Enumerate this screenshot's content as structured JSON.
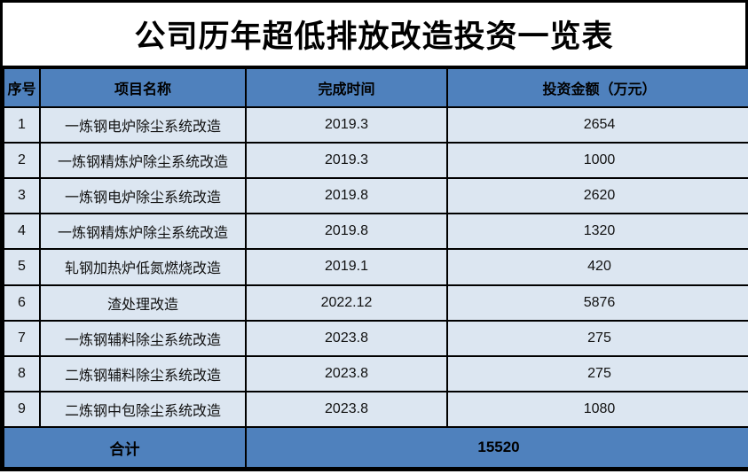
{
  "title": "公司历年超低排放改造投资一览表",
  "table": {
    "columns": [
      "序号",
      "项目名称",
      "完成时间",
      "投资金额（万元）"
    ],
    "rows": [
      {
        "no": "1",
        "project": "一炼钢电炉除尘系统改造",
        "date": "2019.3",
        "amount": "2654"
      },
      {
        "no": "2",
        "project": "一炼钢精炼炉除尘系统改造",
        "date": "2019.3",
        "amount": "1000"
      },
      {
        "no": "3",
        "project": "一炼钢电炉除尘系统改造",
        "date": "2019.8",
        "amount": "2620"
      },
      {
        "no": "4",
        "project": "一炼钢精炼炉除尘系统改造",
        "date": "2019.8",
        "amount": "1320"
      },
      {
        "no": "5",
        "project": "轧钢加热炉低氮燃烧改造",
        "date": "2019.1",
        "amount": "420"
      },
      {
        "no": "6",
        "project": "渣处理改造",
        "date": "2022.12",
        "amount": "5876"
      },
      {
        "no": "7",
        "project": "一炼钢辅料除尘系统改造",
        "date": "2023.8",
        "amount": "275"
      },
      {
        "no": "8",
        "project": "二炼钢辅料除尘系统改造",
        "date": "2023.8",
        "amount": "275"
      },
      {
        "no": "9",
        "project": "二炼钢中包除尘系统改造",
        "date": "2023.8",
        "amount": "1080"
      }
    ],
    "total": {
      "label": "合计",
      "value": "15520"
    }
  },
  "colors": {
    "header_bg": "#4F81BD",
    "total_bg": "#4F81BD",
    "row_bg": "#DCE6F1",
    "border": "#000000",
    "title_text": "#000000"
  }
}
